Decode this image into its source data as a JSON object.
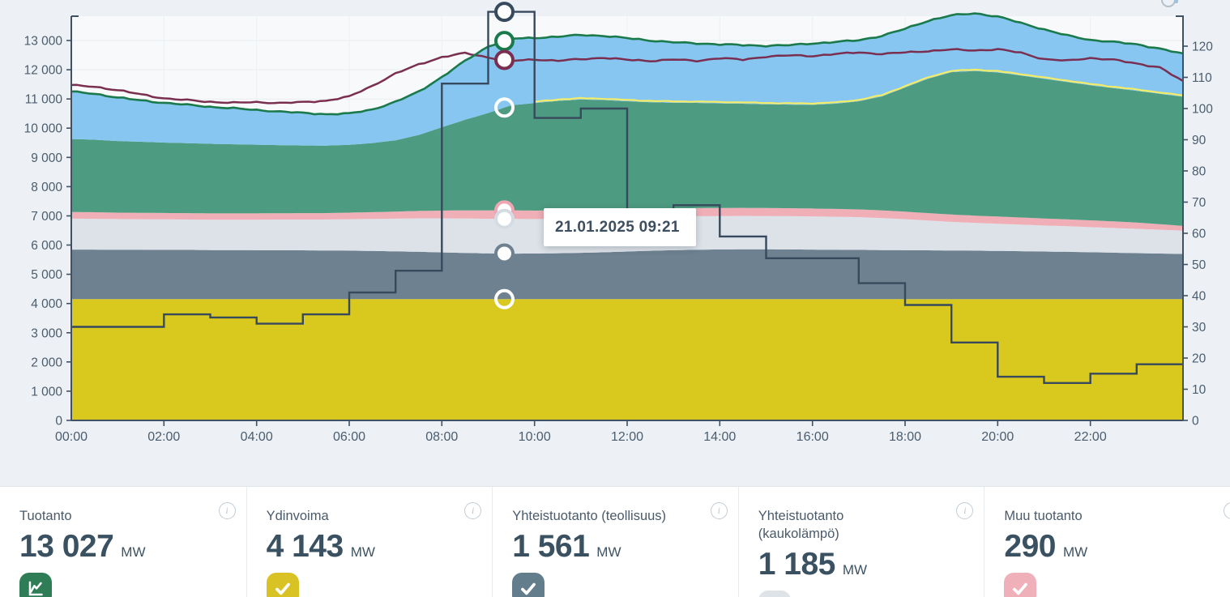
{
  "page": {
    "background": "#edf1f5"
  },
  "tooltip": {
    "text": "21.01.2025 09:21"
  },
  "chart_data": {
    "type": "area",
    "title": "",
    "x_hours": [
      0,
      0.5,
      1,
      1.5,
      2,
      2.5,
      3,
      3.5,
      4,
      4.5,
      5,
      5.5,
      6,
      6.5,
      7,
      7.5,
      8,
      8.5,
      9,
      9.5,
      10,
      10.5,
      11,
      11.5,
      12,
      12.5,
      13,
      13.5,
      14,
      14.5,
      15,
      15.5,
      16,
      16.5,
      17,
      17.5,
      18,
      18.5,
      19,
      19.5,
      20,
      20.5,
      21,
      21.5,
      22,
      22.5,
      23,
      23.5,
      24
    ],
    "x_tick_labels": [
      "00:00",
      "02:00",
      "04:00",
      "06:00",
      "08:00",
      "10:00",
      "12:00",
      "14:00",
      "16:00",
      "18:00",
      "20:00",
      "22:00"
    ],
    "left_axis": {
      "range": [
        0,
        13500
      ],
      "tick_labels": [
        "0",
        "1 000",
        "2 000",
        "3 000",
        "4 000",
        "5 000",
        "6 000",
        "7 000",
        "8 000",
        "9 000",
        "10 000",
        "11 000",
        "12 000",
        "13 000"
      ]
    },
    "right_axis": {
      "range": [
        0,
        130
      ],
      "tick_labels": [
        "0",
        "10",
        "20",
        "30",
        "40",
        "50",
        "60",
        "70",
        "80",
        "90",
        "100",
        "110",
        "120"
      ]
    },
    "marker_hour": 9.35,
    "series": [
      {
        "id": "nuclear",
        "label": "Ydinvoima",
        "type": "area",
        "color": "#d9c81d",
        "values": [
          4150,
          4150,
          4150,
          4150,
          4150,
          4150,
          4150,
          4150,
          4150,
          4150,
          4150,
          4150,
          4150,
          4150,
          4150,
          4150,
          4150,
          4150,
          4150,
          4150,
          4150,
          4150,
          4150,
          4150,
          4150,
          4150,
          4150,
          4150,
          4150,
          4150,
          4150,
          4150,
          4150,
          4150,
          4150,
          4150,
          4150,
          4150,
          4150,
          4150,
          4150,
          4150,
          4150,
          4150,
          4150,
          4150,
          4150,
          4150,
          4150
        ]
      },
      {
        "id": "chp-industry",
        "label": "Yhteistuotanto (teollisuus)",
        "type": "area",
        "color": "#6d8191",
        "values": [
          1695,
          1695,
          1690,
          1690,
          1685,
          1685,
          1680,
          1680,
          1675,
          1675,
          1670,
          1665,
          1660,
          1650,
          1635,
          1620,
          1600,
          1580,
          1565,
          1558,
          1560,
          1570,
          1585,
          1605,
          1630,
          1655,
          1675,
          1690,
          1700,
          1705,
          1705,
          1700,
          1695,
          1690,
          1685,
          1680,
          1675,
          1670,
          1665,
          1660,
          1650,
          1640,
          1630,
          1620,
          1605,
          1590,
          1575,
          1560,
          1545
        ]
      },
      {
        "id": "chp-district-heat",
        "label": "Yhteistuotanto (kaukolämpö)",
        "type": "area",
        "color": "#dde2e8",
        "values": [
          1060,
          1055,
          1050,
          1045,
          1045,
          1040,
          1040,
          1040,
          1045,
          1050,
          1055,
          1060,
          1075,
          1095,
          1120,
          1145,
          1165,
          1180,
          1185,
          1185,
          1180,
          1175,
          1170,
          1165,
          1160,
          1155,
          1150,
          1150,
          1145,
          1145,
          1140,
          1140,
          1135,
          1130,
          1120,
          1095,
          1060,
          1020,
          980,
          950,
          930,
          910,
          890,
          875,
          860,
          845,
          830,
          815,
          800
        ]
      },
      {
        "id": "other-production",
        "label": "Muu tuotanto",
        "type": "area",
        "color": "#f0aeb6",
        "values": [
          225,
          225,
          220,
          220,
          218,
          218,
          215,
          215,
          215,
          215,
          218,
          220,
          225,
          232,
          240,
          252,
          265,
          278,
          288,
          292,
          290,
          288,
          285,
          282,
          280,
          278,
          276,
          275,
          274,
          273,
          272,
          272,
          270,
          268,
          265,
          262,
          258,
          254,
          250,
          248,
          246,
          243,
          240,
          236,
          232,
          226,
          215,
          190,
          160
        ]
      },
      {
        "id": "green-area",
        "label": "",
        "type": "area",
        "color": "#4d9b80",
        "values": [
          2500,
          2480,
          2450,
          2430,
          2410,
          2395,
          2380,
          2365,
          2350,
          2330,
          2315,
          2310,
          2320,
          2365,
          2440,
          2600,
          2850,
          3100,
          3330,
          3600,
          3680,
          3750,
          3790,
          3760,
          3700,
          3650,
          3620,
          3600,
          3580,
          3565,
          3550,
          3545,
          3550,
          3600,
          3700,
          3900,
          4250,
          4600,
          4870,
          4950,
          4930,
          4860,
          4780,
          4700,
          4620,
          4560,
          4510,
          4460,
          4420
        ]
      },
      {
        "id": "blue-area",
        "label": "",
        "type": "area-to-total-line",
        "color": "#87c6f1",
        "values": []
      },
      {
        "id": "total-production-line",
        "label": "Tuotanto",
        "type": "line",
        "color": "#1b7a4c",
        "values": [
          11250,
          11180,
          11050,
          10950,
          10870,
          10800,
          10730,
          10680,
          10620,
          10570,
          10520,
          10480,
          10500,
          10640,
          10900,
          11250,
          11750,
          12300,
          12800,
          13060,
          13090,
          13130,
          13190,
          13160,
          13080,
          13000,
          12940,
          12900,
          12870,
          12840,
          12820,
          12840,
          12900,
          12950,
          13010,
          13160,
          13400,
          13680,
          13860,
          13930,
          13820,
          13600,
          13380,
          13170,
          13020,
          12950,
          12870,
          12720,
          12540
        ]
      },
      {
        "id": "dark-red-line",
        "label": "",
        "type": "line",
        "color": "#7b2f50",
        "values": [
          11470,
          11420,
          11300,
          11160,
          11020,
          10960,
          10900,
          10870,
          10890,
          10860,
          10890,
          10940,
          11080,
          11450,
          11870,
          12180,
          12430,
          12570,
          12420,
          12300,
          12350,
          12310,
          12360,
          12410,
          12340,
          12300,
          12350,
          12300,
          12400,
          12340,
          12450,
          12490,
          12470,
          12540,
          12590,
          12540,
          12590,
          12640,
          12690,
          12660,
          12700,
          12580,
          12360,
          12310,
          12400,
          12340,
          12210,
          12080,
          11600
        ]
      },
      {
        "id": "stepped-dark-line",
        "label": "",
        "type": "step-line",
        "axis": "right",
        "color": "#37495c",
        "values": [
          30,
          30,
          34,
          33,
          31,
          34,
          41,
          48,
          108,
          131,
          97,
          100,
          67,
          69,
          59,
          52,
          52,
          44,
          37,
          25,
          14,
          12,
          15,
          18
        ]
      },
      {
        "id": "yellow-line",
        "label": "",
        "type": "line-follows-green-top",
        "color": "#f3ec66",
        "start_hour": 10,
        "offset": 45
      }
    ]
  },
  "cards": [
    {
      "label": "Tuotanto",
      "value": "13 027",
      "unit": "MW",
      "icon": "line-chart-icon",
      "icon_color": "#2e7d57"
    },
    {
      "label": "Ydinvoima",
      "value": "4 143",
      "unit": "MW",
      "icon": "check-icon",
      "icon_color": "#d9c324"
    },
    {
      "label": "Yhteistuotanto (teollisuus)",
      "value": "1 561",
      "unit": "MW",
      "icon": "check-icon",
      "icon_color": "#647d8d"
    },
    {
      "label": "Yhteistuotanto (kaukolämpö)",
      "value": "1 185",
      "unit": "MW",
      "icon": "check-icon",
      "icon_color": "#dee3e8"
    },
    {
      "label": "Muu tuotanto",
      "value": "290",
      "unit": "MW",
      "icon": "check-icon",
      "icon_color": "#efb0b9"
    }
  ]
}
